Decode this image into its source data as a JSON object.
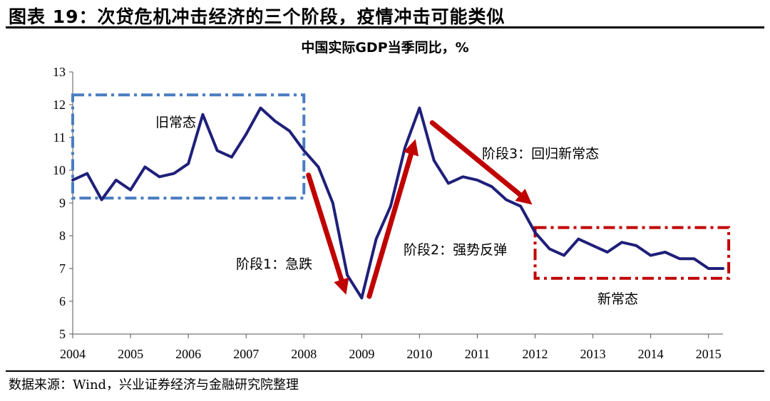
{
  "figure": {
    "title": "图表 19：次贷危机冲击经济的三个阶段，疫情冲击可能类似",
    "source": "数据来源：Wind，兴业证券经济与金融研究院整理"
  },
  "chart_data": {
    "type": "line",
    "title": "中国实际GDP当季同比，%",
    "xlabel": "",
    "ylabel": "",
    "x_ticks": [
      "2004",
      "2005",
      "2006",
      "2007",
      "2008",
      "2009",
      "2010",
      "2011",
      "2012",
      "2013",
      "2014",
      "2015"
    ],
    "y_ticks": [
      "5",
      "6",
      "7",
      "8",
      "9",
      "10",
      "11",
      "12",
      "13"
    ],
    "xlim": [
      2004.0,
      2015.25
    ],
    "ylim": [
      5,
      13
    ],
    "grid": false,
    "legend": "none",
    "series": [
      {
        "color": "#1f1f7a",
        "x": [
          "2004Q1",
          "2004Q2",
          "2004Q3",
          "2004Q4",
          "2005Q1",
          "2005Q2",
          "2005Q3",
          "2005Q4",
          "2006Q1",
          "2006Q2",
          "2006Q3",
          "2006Q4",
          "2007Q1",
          "2007Q2",
          "2007Q3",
          "2007Q4",
          "2008Q1",
          "2008Q2",
          "2008Q3",
          "2008Q4",
          "2009Q1",
          "2009Q2",
          "2009Q3",
          "2009Q4",
          "2010Q1",
          "2010Q2",
          "2010Q3",
          "2010Q4",
          "2011Q1",
          "2011Q2",
          "2011Q3",
          "2011Q4",
          "2012Q1",
          "2012Q2",
          "2012Q3",
          "2012Q4",
          "2013Q1",
          "2013Q2",
          "2013Q3",
          "2013Q4",
          "2014Q1",
          "2014Q2",
          "2014Q3",
          "2014Q4",
          "2015Q1",
          "2015Q2"
        ],
        "values": [
          9.7,
          9.9,
          9.1,
          9.7,
          9.4,
          10.1,
          9.8,
          9.9,
          10.2,
          11.7,
          10.6,
          10.4,
          11.1,
          11.9,
          11.5,
          11.2,
          10.6,
          10.1,
          9.0,
          6.8,
          6.1,
          7.9,
          8.9,
          10.7,
          11.9,
          10.3,
          9.6,
          9.8,
          9.7,
          9.5,
          9.1,
          8.9,
          8.1,
          7.6,
          7.4,
          7.9,
          7.7,
          7.5,
          7.8,
          7.7,
          7.4,
          7.5,
          7.3,
          7.3,
          7.0,
          7.0
        ]
      }
    ],
    "annotations": {
      "old_normal": "旧常态",
      "phase1": "阶段1：急跌",
      "phase2": "阶段2：强势反弹",
      "phase3": "阶段3：回归新常态",
      "new_normal": "新常态"
    },
    "colors": {
      "line": "#1f1f7a",
      "arrow": "#c00000",
      "old_box": "#4a7cc0",
      "new_box": "#c00000"
    }
  }
}
